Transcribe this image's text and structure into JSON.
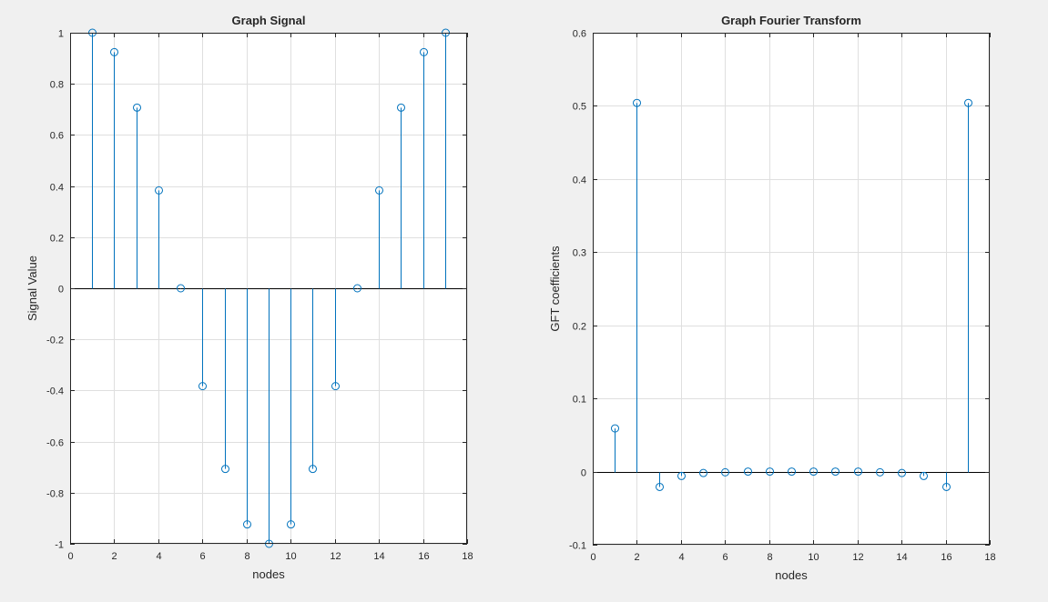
{
  "figure": {
    "background": "#f0f0f0",
    "axes_background": "#ffffff",
    "grid_color": "#dfdfdf",
    "axis_color": "#262626",
    "stem_color": "#0072bd"
  },
  "chart_data": [
    {
      "type": "stem",
      "title": "Graph Signal",
      "xlabel": "nodes",
      "ylabel": "Signal Value",
      "xlim": [
        0,
        18
      ],
      "ylim": [
        -1,
        1
      ],
      "grid": true,
      "xticks": [
        0,
        2,
        4,
        6,
        8,
        10,
        12,
        14,
        16,
        18
      ],
      "yticks": [
        -1,
        -0.8,
        -0.6,
        -0.4,
        -0.2,
        0,
        0.2,
        0.4,
        0.6,
        0.8,
        1
      ],
      "xtick_labels": [
        "0",
        "2",
        "4",
        "6",
        "8",
        "10",
        "12",
        "14",
        "16",
        "18"
      ],
      "ytick_labels": [
        "-1",
        "-0.8",
        "-0.6",
        "-0.4",
        "-0.2",
        "0",
        "0.2",
        "0.4",
        "0.6",
        "0.8",
        "1"
      ],
      "x": [
        1,
        2,
        3,
        4,
        5,
        6,
        7,
        8,
        9,
        10,
        11,
        12,
        13,
        14,
        15,
        16,
        17
      ],
      "y": [
        1,
        0.924,
        0.707,
        0.383,
        0,
        -0.383,
        -0.707,
        -0.924,
        -1,
        -0.924,
        -0.707,
        -0.383,
        0,
        0.383,
        0.707,
        0.924,
        1
      ]
    },
    {
      "type": "stem",
      "title": "Graph Fourier Transform",
      "xlabel": "nodes",
      "ylabel": "GFT coefficients",
      "xlim": [
        0,
        18
      ],
      "ylim": [
        -0.1,
        0.6
      ],
      "grid": true,
      "xticks": [
        0,
        2,
        4,
        6,
        8,
        10,
        12,
        14,
        16,
        18
      ],
      "yticks": [
        -0.1,
        0,
        0.1,
        0.2,
        0.3,
        0.4,
        0.5,
        0.6
      ],
      "xtick_labels": [
        "0",
        "2",
        "4",
        "6",
        "8",
        "10",
        "12",
        "14",
        "16",
        "18"
      ],
      "ytick_labels": [
        "-0.1",
        "0",
        "0.1",
        "0.2",
        "0.3",
        "0.4",
        "0.5",
        "0.6"
      ],
      "x": [
        1,
        2,
        3,
        4,
        5,
        6,
        7,
        8,
        9,
        10,
        11,
        12,
        13,
        14,
        15,
        16,
        17
      ],
      "y": [
        0.059,
        0.504,
        -0.021,
        -0.006,
        -0.002,
        -0.001,
        0,
        0,
        0,
        0,
        0,
        0,
        -0.001,
        -0.002,
        -0.006,
        -0.021,
        0.504
      ]
    }
  ]
}
